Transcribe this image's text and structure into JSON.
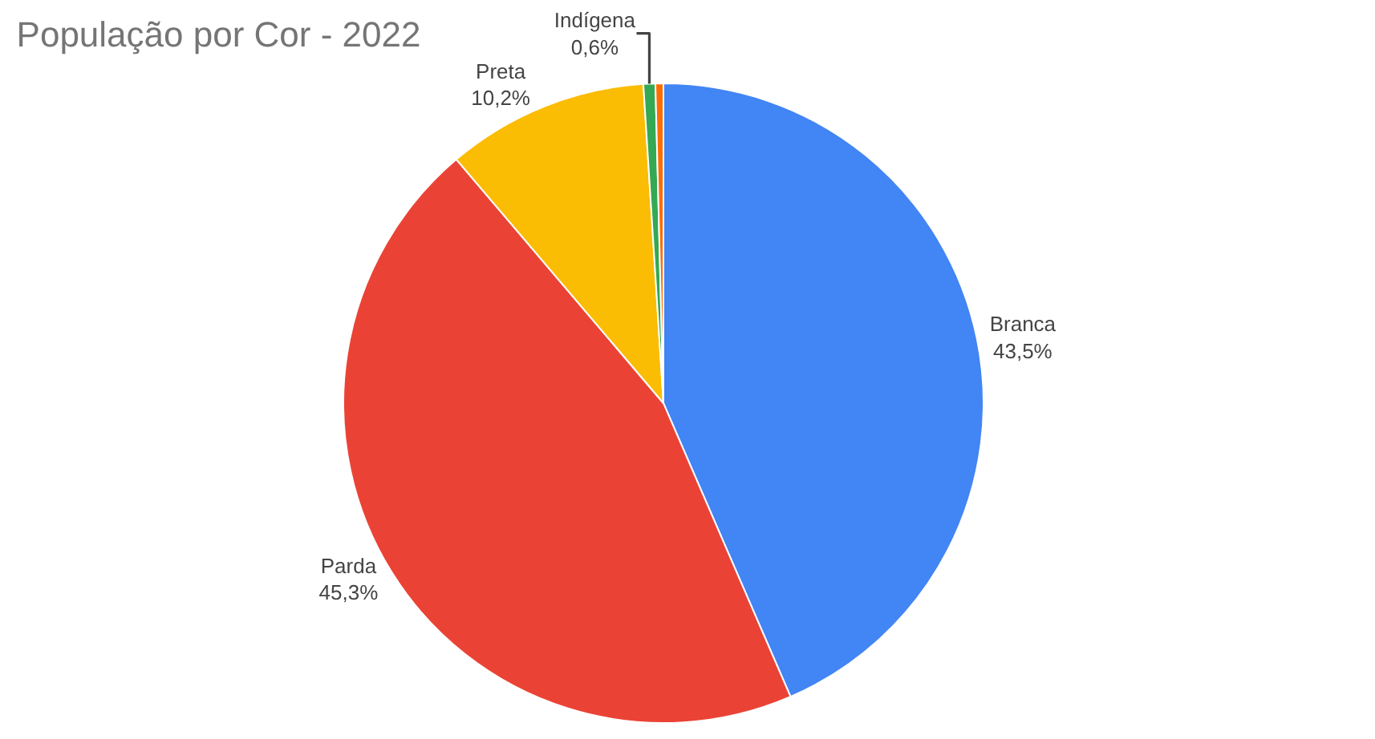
{
  "chart_data": {
    "type": "pie",
    "title": "População por Cor - 2022",
    "categories": [
      "Branca",
      "Parda",
      "Preta",
      "Indígena",
      null
    ],
    "values": [
      43.5,
      45.3,
      10.2,
      0.6,
      0.4
    ],
    "value_labels": [
      "43,5%",
      "45,3%",
      "10,2%",
      "0,6%",
      null
    ],
    "colors": [
      "#4285f4",
      "#ea4335",
      "#fbbc04",
      "#34a853",
      "#ff6d01"
    ],
    "legend": false
  }
}
